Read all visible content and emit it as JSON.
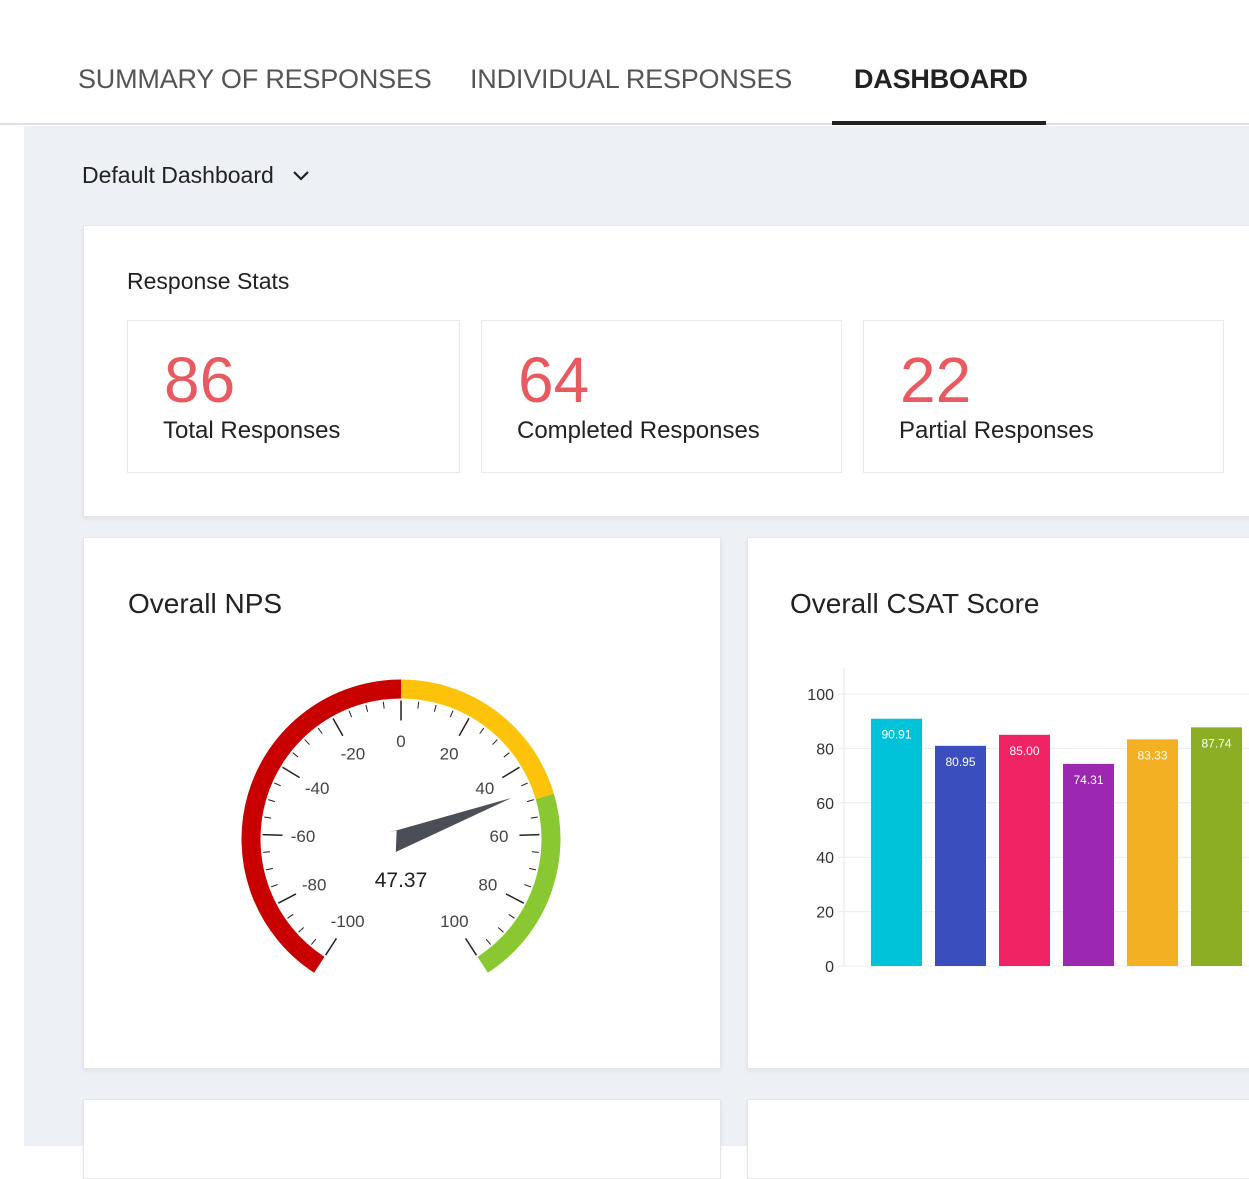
{
  "tabs": [
    {
      "label": "SUMMARY OF RESPONSES"
    },
    {
      "label": "INDIVIDUAL RESPONSES"
    },
    {
      "label": "DASHBOARD",
      "active": true
    }
  ],
  "dashboard_select": {
    "value": "Default Dashboard",
    "icon": "chevron-down-icon"
  },
  "response_stats": {
    "title": "Response Stats",
    "items": [
      {
        "value": "86",
        "label": "Total Responses"
      },
      {
        "value": "64",
        "label": "Completed Responses"
      },
      {
        "value": "22",
        "label": "Partial Responses"
      }
    ]
  },
  "nps": {
    "title": "Overall NPS",
    "value": 47.37,
    "value_label": "47.37",
    "min": -100,
    "max": 100,
    "bands": [
      {
        "from": -100,
        "to": 0,
        "color": "#c80000"
      },
      {
        "from": 0,
        "to": 50,
        "color": "#fcc30a"
      },
      {
        "from": 50,
        "to": 100,
        "color": "#8ac832"
      }
    ],
    "tick_labels": [
      "-100",
      "-80",
      "-60",
      "-40",
      "-20",
      "0",
      "20",
      "40",
      "60",
      "80",
      "100"
    ]
  },
  "chart_data": {
    "type": "bar",
    "title": "Overall CSAT Score",
    "categories": [
      "",
      "",
      "",
      "",
      "",
      ""
    ],
    "values": [
      90.91,
      80.95,
      85.0,
      74.31,
      83.33,
      87.74
    ],
    "labels": [
      "90.91",
      "80.95",
      "85.00",
      "74.31",
      "83.33",
      "87.74"
    ],
    "colors": [
      "#00c2d9",
      "#3a4fbd",
      "#f02364",
      "#9c27b0",
      "#f2b022",
      "#8cae24"
    ],
    "ylim": [
      0,
      100
    ],
    "yticks": [
      "0",
      "20",
      "40",
      "60",
      "80",
      "100"
    ],
    "grid": true,
    "xlabel": "",
    "ylabel": ""
  }
}
